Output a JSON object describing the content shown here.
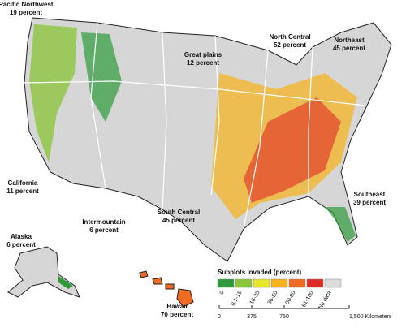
{
  "regions": [
    {
      "name": "Pacific Northwest",
      "value": "19 percent"
    },
    {
      "name": "Great plains",
      "value": "12 percent"
    },
    {
      "name": "North Central",
      "value": "52 percent"
    },
    {
      "name": "Northeast",
      "value": "45 percent"
    },
    {
      "name": "California",
      "value": "11 percent"
    },
    {
      "name": "Intermountain",
      "value": "6 percent"
    },
    {
      "name": "South Central",
      "value": "45 percent"
    },
    {
      "name": "Southeast",
      "value": "39 percent"
    },
    {
      "name": "Alaska",
      "value": "6 percent"
    },
    {
      "name": "Hawaii",
      "value": "70 percent"
    }
  ],
  "legend": {
    "title": "Subplots invaded (percent)",
    "items": [
      {
        "label": "0",
        "color": "#2e9a3a"
      },
      {
        "label": "0.1-15",
        "color": "#8cc63f"
      },
      {
        "label": "16-35",
        "color": "#e6e62a"
      },
      {
        "label": "36-50",
        "color": "#f6b21a"
      },
      {
        "label": "50-80",
        "color": "#ef6a22"
      },
      {
        "label": "81-100",
        "color": "#e02a26"
      },
      {
        "label": "No data",
        "color": "#dcdcdc"
      }
    ]
  },
  "scale": {
    "ticks": [
      "0",
      "375",
      "750",
      "1,500 Kilometers"
    ]
  }
}
